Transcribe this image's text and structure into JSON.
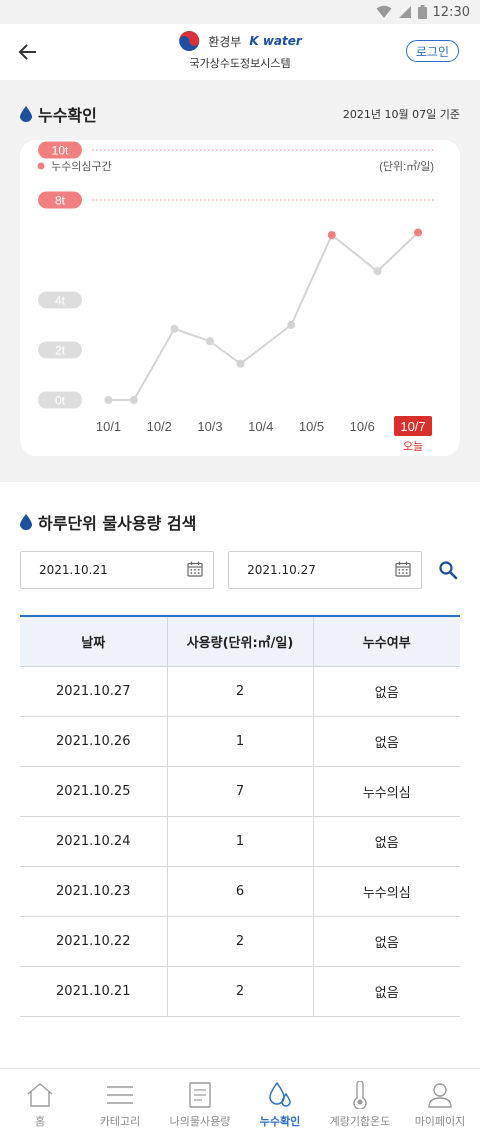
{
  "statusbar": {
    "time": "12:30"
  },
  "header": {
    "ministry": "환경부",
    "kwater": "K water",
    "subtitle": "국가상수도정보시스템",
    "login_label": "로그인"
  },
  "leak_check": {
    "title": "누수확인",
    "reference_date": "2021년 10월 07일 기준",
    "legend": "누수의심구간",
    "unit": "(단위:㎥/일)"
  },
  "chart_data": {
    "type": "line",
    "categories": [
      "10/1",
      "10/2",
      "10/3",
      "10/4",
      "10/5",
      "10/6",
      "10/7"
    ],
    "x": [
      1.0,
      1.5,
      2.3,
      3.0,
      3.6,
      4.6,
      5.4,
      6.3,
      7.1
    ],
    "values": [
      0,
      0,
      2.85,
      2.35,
      1.45,
      3.0,
      6.6,
      5.15,
      6.7
    ],
    "suspect_points": [
      6,
      8
    ],
    "y_ticks": [
      "0t",
      "2t",
      "4t",
      "8t",
      "10t"
    ],
    "y_tick_values": [
      0,
      2,
      4,
      8,
      10
    ],
    "highlight_ticks": [
      "8t",
      "10t"
    ],
    "threshold_lines": [
      8,
      10
    ],
    "today_category": "10/7",
    "today_label": "오늘",
    "colors": {
      "line": "#d4d4d4",
      "suspect": "#f08080",
      "today": "#d9302c",
      "tick_bg": "#dddddd"
    }
  },
  "search": {
    "title": "하루단위 물사용량 검색",
    "start_date": "2021.10.21",
    "end_date": "2021.10.27"
  },
  "table": {
    "headers": [
      "날짜",
      "사용량(단위:㎥/일)",
      "누수여부"
    ],
    "rows": [
      [
        "2021.10.27",
        "2",
        "없음"
      ],
      [
        "2021.10.26",
        "1",
        "없음"
      ],
      [
        "2021.10.25",
        "7",
        "누수의심"
      ],
      [
        "2021.10.24",
        "1",
        "없음"
      ],
      [
        "2021.10.23",
        "6",
        "누수의심"
      ],
      [
        "2021.10.22",
        "2",
        "없음"
      ],
      [
        "2021.10.21",
        "2",
        "없음"
      ]
    ]
  },
  "nav": [
    {
      "label": "홈",
      "icon": "home-icon",
      "active": false
    },
    {
      "label": "카테고리",
      "icon": "menu-icon",
      "active": false
    },
    {
      "label": "나의물사용량",
      "icon": "document-icon",
      "active": false
    },
    {
      "label": "누수확인",
      "icon": "water-drop-icon",
      "active": true
    },
    {
      "label": "계량기함온도",
      "icon": "thermometer-icon",
      "active": false
    },
    {
      "label": "마이페이지",
      "icon": "user-icon",
      "active": false
    }
  ]
}
